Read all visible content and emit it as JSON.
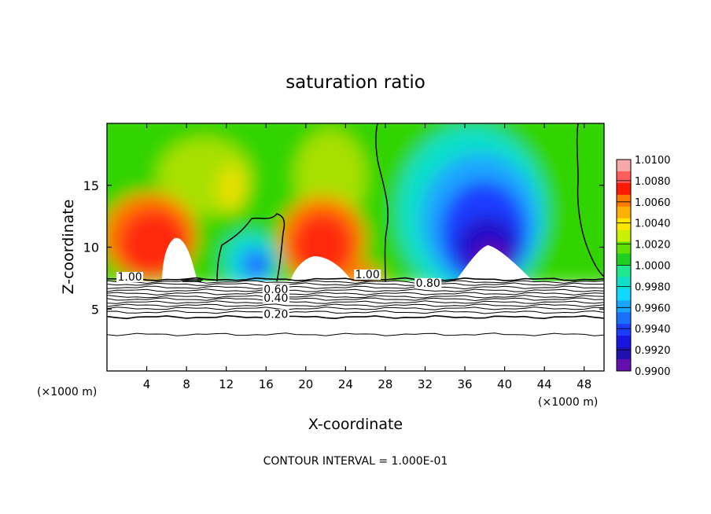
{
  "chart_data": {
    "type": "heatmap",
    "title": "saturation ratio",
    "xlabel": "X-coordinate",
    "ylabel": "Z-coordinate",
    "x_unit_left": "(×1000 m)",
    "x_unit_right": "(×1000 m)",
    "footer": "CONTOUR INTERVAL = 1.000E-01",
    "xlim": [
      0,
      50
    ],
    "ylim": [
      0,
      20
    ],
    "x_ticks": [
      "4",
      "8",
      "12",
      "16",
      "20",
      "24",
      "28",
      "32",
      "36",
      "40",
      "44",
      "48"
    ],
    "x_tick_values": [
      4,
      8,
      12,
      16,
      20,
      24,
      28,
      32,
      36,
      40,
      44,
      48
    ],
    "y_ticks": [
      "5",
      "10",
      "15"
    ],
    "y_tick_values": [
      5,
      10,
      15
    ],
    "colorbar_labels": [
      "1.0100",
      "1.0080",
      "1.0060",
      "1.0040",
      "1.0020",
      "1.0000",
      "0.9980",
      "0.9960",
      "0.9940",
      "0.9920",
      "0.9900"
    ],
    "colorbar_colors": [
      "#f7a8a8",
      "#ff5c5c",
      "#ff1a00",
      "#ff7a00",
      "#ffb000",
      "#ffe600",
      "#c8f000",
      "#60e000",
      "#20d020",
      "#20e890",
      "#10e0c8",
      "#10d8ff",
      "#1aa6ff",
      "#1870ff",
      "#1c3cff",
      "#1a14e0",
      "#2010b0",
      "#6410b0"
    ],
    "contour_labels": [
      {
        "text": "1.00",
        "x": 2.3,
        "z": 7.3
      },
      {
        "text": "1.00",
        "x": 26.2,
        "z": 7.5
      },
      {
        "text": "0.80",
        "x": 32.3,
        "z": 6.8
      },
      {
        "text": "0.60",
        "x": 17.0,
        "z": 6.3
      },
      {
        "text": "0.40",
        "x": 17.0,
        "z": 5.6
      },
      {
        "text": "0.20",
        "x": 17.0,
        "z": 4.3
      }
    ]
  }
}
